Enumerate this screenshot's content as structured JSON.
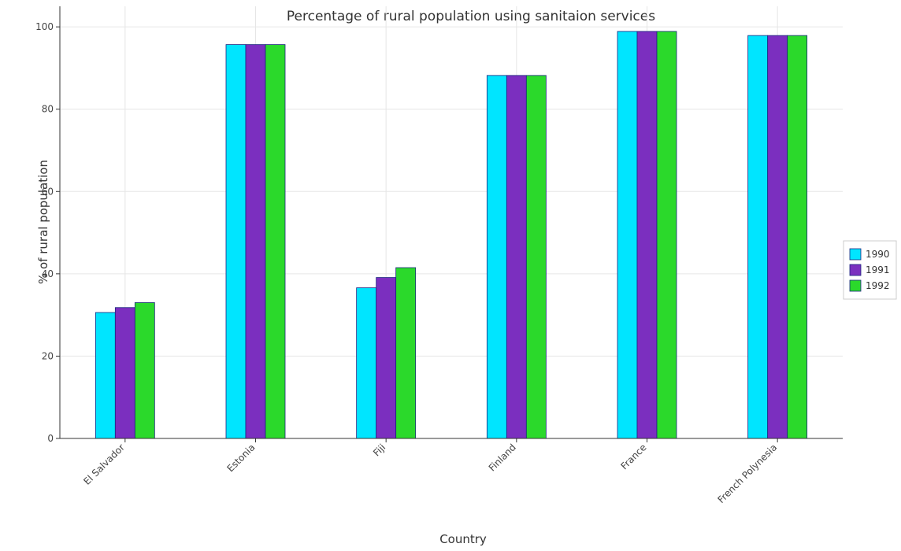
{
  "chart_data": {
    "type": "bar",
    "title": "Percentage of rural population using sanitaion services",
    "xlabel": "Country",
    "ylabel": "% of rural population",
    "categories": [
      "El Salvador",
      "Estonia",
      "Fiji",
      "Finland",
      "France",
      "French Polynesia"
    ],
    "series": [
      {
        "name": "1990",
        "color": "#00e5ff",
        "values": [
          30.6,
          95.7,
          36.6,
          88.2,
          98.9,
          97.9
        ]
      },
      {
        "name": "1991",
        "color": "#7b2fbf",
        "values": [
          31.8,
          95.7,
          39.1,
          88.2,
          98.9,
          97.9
        ]
      },
      {
        "name": "1992",
        "color": "#2bd92b",
        "values": [
          33.0,
          95.7,
          41.5,
          88.2,
          98.9,
          97.9
        ]
      }
    ],
    "ylim": [
      0,
      105
    ],
    "yticks": [
      0,
      20,
      40,
      60,
      80,
      100
    ],
    "grid": true,
    "legend_position": "right"
  }
}
